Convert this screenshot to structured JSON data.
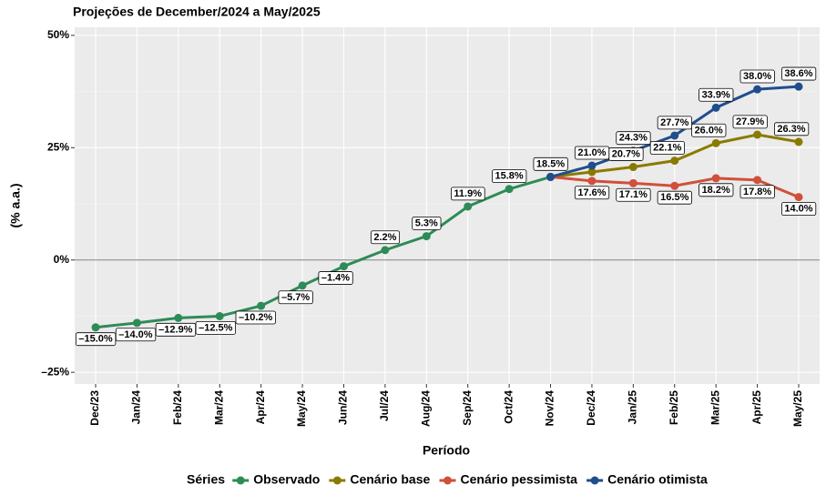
{
  "chart_data": {
    "type": "line",
    "title": "Projeções de December/2024 a May/2025",
    "x_label": "Período",
    "y_label": "(% a.a.)",
    "legend_title": "Séries",
    "legend_position": "bottom",
    "grid": true,
    "categories": [
      "Dec/23",
      "Jan/24",
      "Feb/24",
      "Mar/24",
      "Apr/24",
      "May/24",
      "Jun/24",
      "Jul/24",
      "Aug/24",
      "Sep/24",
      "Oct/24",
      "Nov/24",
      "Dec/24",
      "Jan/25",
      "Feb/25",
      "Mar/25",
      "Apr/25",
      "May/25"
    ],
    "ylim": [
      -27.6,
      51.8
    ],
    "yticks": [
      {
        "value": -25,
        "label": "–25%"
      },
      {
        "value": 0,
        "label": "0%"
      },
      {
        "value": 25,
        "label": "25%"
      },
      {
        "value": 50,
        "label": "50%"
      }
    ],
    "series": [
      {
        "name": "Observado",
        "color": "#2e8b57",
        "values": [
          -15.0,
          -14.0,
          -12.9,
          -12.5,
          -10.2,
          -5.7,
          -1.4,
          2.2,
          5.3,
          11.9,
          15.8,
          18.5,
          null,
          null,
          null,
          null,
          null,
          null
        ],
        "value_labels": [
          "–15.0%",
          "–14.0%",
          "–12.9%",
          "–12.5%",
          "–10.2%",
          "–5.7%",
          "–1.4%",
          "2.2%",
          "5.3%",
          "11.9%",
          "15.8%",
          "18.5%",
          null,
          null,
          null,
          null,
          null,
          null
        ]
      },
      {
        "name": "Cenário base",
        "color": "#8b7a00",
        "values": [
          null,
          null,
          null,
          null,
          null,
          null,
          null,
          null,
          null,
          null,
          null,
          18.5,
          19.6,
          20.7,
          22.1,
          26.0,
          27.9,
          26.3
        ],
        "value_labels": [
          null,
          null,
          null,
          null,
          null,
          null,
          null,
          null,
          null,
          null,
          null,
          null,
          null,
          "20.7%",
          "22.1%",
          "26.0%",
          "27.9%",
          "26.3%"
        ]
      },
      {
        "name": "Cenário pessimista",
        "color": "#d0503a",
        "values": [
          null,
          null,
          null,
          null,
          null,
          null,
          null,
          null,
          null,
          null,
          null,
          18.5,
          17.6,
          17.1,
          16.5,
          18.2,
          17.8,
          14.0
        ],
        "value_labels": [
          null,
          null,
          null,
          null,
          null,
          null,
          null,
          null,
          null,
          null,
          null,
          null,
          "17.6%",
          "17.1%",
          "16.5%",
          "18.2%",
          "17.8%",
          "14.0%"
        ]
      },
      {
        "name": "Cenário otimista",
        "color": "#1f4e8c",
        "values": [
          null,
          null,
          null,
          null,
          null,
          null,
          null,
          null,
          null,
          null,
          null,
          18.5,
          21.0,
          24.3,
          27.7,
          33.9,
          38.0,
          38.6
        ],
        "value_labels": [
          null,
          null,
          null,
          null,
          null,
          null,
          null,
          null,
          null,
          null,
          null,
          null,
          "21.0%",
          "24.3%",
          "27.7%",
          "33.9%",
          "38.0%",
          "38.6%"
        ]
      }
    ]
  }
}
